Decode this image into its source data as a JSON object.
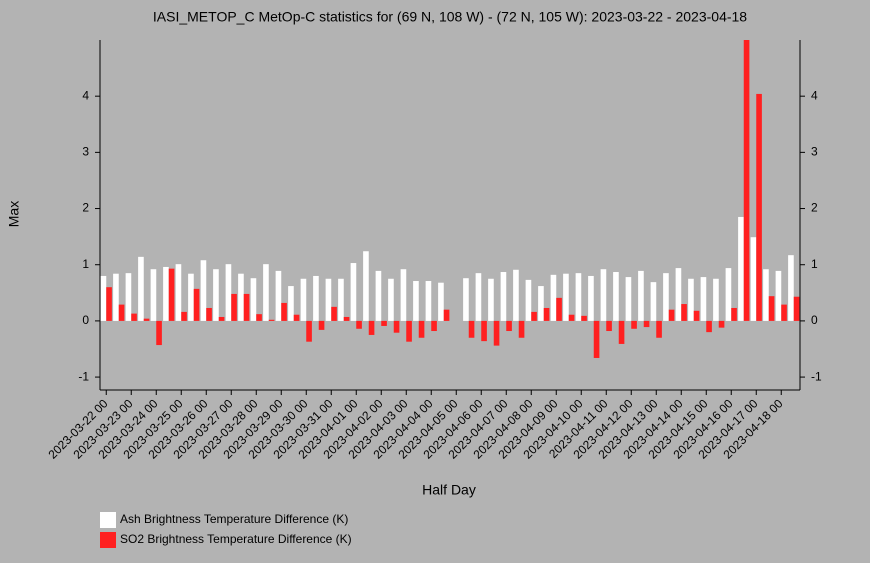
{
  "chart_data": {
    "type": "bar",
    "title": "IASI_METOP_C MetOp-C statistics for (69 N, 108 W) - (72 N, 105 W): 2023-03-22 - 2023-04-18",
    "x_label": "Half Day",
    "y_label": "Max",
    "categories": [
      "2023-03-22 00",
      null,
      "2023-03-23 00",
      null,
      "2023-03-24 00",
      null,
      "2023-03-25 00",
      null,
      "2023-03-26 00",
      null,
      "2023-03-27 00",
      null,
      "2023-03-28 00",
      null,
      "2023-03-29 00",
      null,
      "2023-03-30 00",
      null,
      "2023-03-31 00",
      null,
      "2023-04-01 00",
      null,
      "2023-04-02 00",
      null,
      "2023-04-03 00",
      null,
      "2023-04-04 00",
      null,
      "2023-04-05 00",
      null,
      "2023-04-06 00",
      null,
      "2023-04-07 00",
      null,
      "2023-04-08 00",
      null,
      "2023-04-09 00",
      null,
      "2023-04-10 00",
      null,
      "2023-04-11 00",
      null,
      "2023-04-12 00",
      null,
      "2023-04-13 00",
      null,
      "2023-04-14 00",
      null,
      "2023-04-15 00",
      null,
      "2023-04-16 00",
      null,
      "2023-04-17 00",
      null,
      "2023-04-18 00",
      null
    ],
    "series": [
      {
        "name": "Ash Brightness Temperature Difference (K)",
        "color": "#ffffff",
        "values": [
          0.8,
          0.84,
          0.85,
          1.14,
          0.92,
          0.96,
          1.01,
          0.84,
          1.08,
          0.92,
          1.01,
          0.84,
          0.76,
          1.01,
          0.89,
          0.62,
          0.75,
          0.8,
          0.75,
          0.75,
          1.03,
          1.24,
          0.89,
          0.75,
          0.92,
          0.71,
          0.71,
          0.68,
          null,
          0.76,
          0.85,
          0.75,
          0.87,
          0.91,
          0.73,
          0.62,
          0.82,
          0.84,
          0.85,
          0.8,
          0.92,
          0.87,
          0.78,
          0.89,
          0.69,
          0.85,
          0.94,
          0.75,
          0.78,
          0.75,
          0.94,
          1.85,
          1.49,
          0.92,
          0.89,
          1.17
        ]
      },
      {
        "name": "SO2 Brightness Temperature Difference (K)",
        "color": "#ff2020",
        "values": [
          0.6,
          0.29,
          0.13,
          0.04,
          -0.43,
          0.93,
          0.16,
          0.57,
          0.23,
          0.07,
          0.48,
          0.48,
          0.12,
          0.02,
          0.32,
          0.11,
          -0.37,
          -0.16,
          0.25,
          0.07,
          -0.14,
          -0.25,
          -0.09,
          -0.21,
          -0.37,
          -0.3,
          -0.18,
          0.2,
          null,
          -0.3,
          -0.36,
          -0.44,
          -0.18,
          -0.3,
          0.16,
          0.23,
          0.41,
          0.11,
          0.09,
          -0.66,
          -0.18,
          -0.41,
          -0.14,
          -0.11,
          -0.3,
          0.2,
          0.3,
          0.18,
          -0.2,
          -0.12,
          0.23,
          5.0,
          4.04,
          0.44,
          0.29,
          0.43
        ]
      }
    ],
    "ylim": [
      -1.23,
      5.0
    ],
    "yticks": [
      -1,
      0,
      1,
      2,
      3,
      4
    ],
    "grid": false
  }
}
